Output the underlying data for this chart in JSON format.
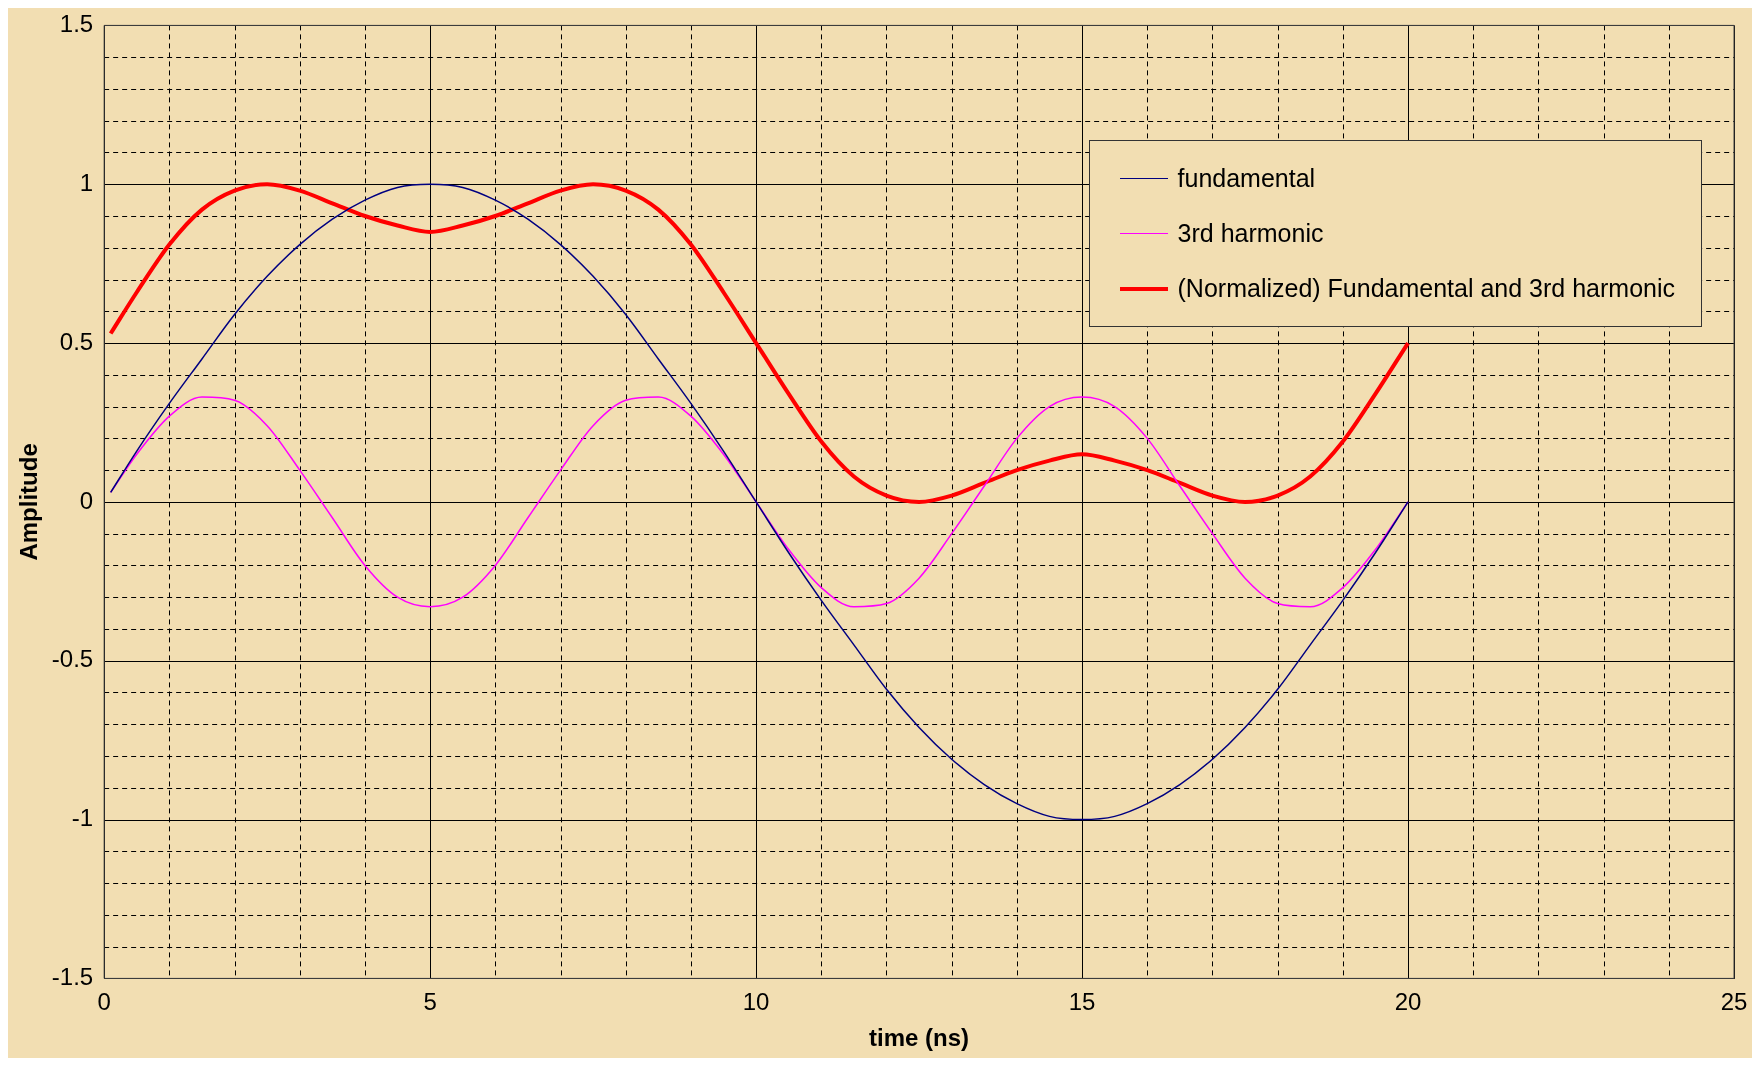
{
  "chart_data": {
    "type": "line",
    "xlabel": "time (ns)",
    "ylabel": "Amplitude",
    "xlim": [
      0,
      25
    ],
    "xticks": [
      0,
      {
        "value": 1,
        "label": null
      },
      {
        "value": 2,
        "label": null
      },
      {
        "value": 3,
        "label": null
      },
      {
        "value": 4,
        "label": null
      },
      5,
      {
        "value": 6,
        "label": null
      },
      {
        "value": 7,
        "label": null
      },
      {
        "value": 8,
        "label": null
      },
      {
        "value": 9,
        "label": null
      },
      10,
      {
        "value": 11,
        "label": null
      },
      {
        "value": 12,
        "label": null
      },
      {
        "value": 13,
        "label": null
      },
      {
        "value": 14,
        "label": null
      },
      15,
      {
        "value": 16,
        "label": null
      },
      {
        "value": 17,
        "label": null
      },
      {
        "value": 18,
        "label": null
      },
      {
        "value": 19,
        "label": null
      },
      20,
      {
        "value": 21,
        "label": null
      },
      {
        "value": 22,
        "label": null
      },
      {
        "value": 23,
        "label": null
      },
      {
        "value": 24,
        "label": null
      },
      25
    ],
    "ylim": [
      -1.5,
      1.5
    ],
    "yticks": [
      -1.5,
      {
        "value": -1.4,
        "label": null
      },
      {
        "value": -1.3,
        "label": null
      },
      {
        "value": -1.2,
        "label": null
      },
      {
        "value": -1.1,
        "label": null
      },
      -1,
      {
        "value": -0.9,
        "label": null
      },
      {
        "value": -0.8,
        "label": null
      },
      {
        "value": -0.7,
        "label": null
      },
      {
        "value": -0.6,
        "label": null
      },
      -0.5,
      {
        "value": -0.4,
        "label": null
      },
      {
        "value": -0.3,
        "label": null
      },
      {
        "value": -0.2,
        "label": null
      },
      {
        "value": -0.1,
        "label": null
      },
      0,
      {
        "value": 0.1,
        "label": null
      },
      {
        "value": 0.2,
        "label": null
      },
      {
        "value": 0.3,
        "label": null
      },
      {
        "value": 0.4,
        "label": null
      },
      0.5,
      {
        "value": 0.6,
        "label": null
      },
      {
        "value": 0.7,
        "label": null
      },
      {
        "value": 0.8,
        "label": null
      },
      {
        "value": 0.9,
        "label": null
      },
      1,
      {
        "value": 1.1,
        "label": null
      },
      {
        "value": 1.2,
        "label": null
      },
      {
        "value": 1.3,
        "label": null
      },
      {
        "value": 1.4,
        "label": null
      },
      1.5
    ],
    "grid": true,
    "legend": "top right",
    "marker": "none",
    "line_style": "solid",
    "x": [
      0.1,
      0.5,
      1,
      1.5,
      2,
      2.5,
      3,
      3.5,
      4,
      4.5,
      5,
      5.5,
      6,
      6.5,
      7,
      7.5,
      8,
      8.5,
      9,
      9.5,
      10,
      10.5,
      11,
      11.5,
      12,
      12.5,
      13,
      13.5,
      14,
      14.5,
      15,
      15.5,
      16,
      16.5,
      17,
      17.5,
      18,
      18.5,
      19,
      19.5,
      20
    ],
    "series": [
      {
        "name": "fundamental",
        "color": "#000080",
        "values": [
          0.03,
          0.16,
          0.31,
          0.45,
          0.59,
          0.71,
          0.81,
          0.89,
          0.95,
          0.99,
          1,
          0.99,
          0.95,
          0.89,
          0.81,
          0.71,
          0.59,
          0.45,
          0.31,
          0.16,
          0,
          -0.16,
          -0.31,
          -0.45,
          -0.59,
          -0.71,
          -0.81,
          -0.89,
          -0.95,
          -0.99,
          -1,
          -0.99,
          -0.95,
          -0.89,
          -0.81,
          -0.71,
          -0.59,
          -0.45,
          -0.31,
          -0.16,
          0
        ]
      },
      {
        "name": "3rd harmonic",
        "color": "#ff00ff",
        "values": [
          0.03,
          0.15,
          0.27,
          0.33,
          0.32,
          0.24,
          0.1,
          -0.05,
          -0.2,
          -0.3,
          -0.33,
          -0.3,
          -0.2,
          -0.05,
          0.1,
          0.24,
          0.32,
          0.33,
          0.27,
          0.15,
          0,
          -0.15,
          -0.27,
          -0.33,
          -0.32,
          -0.24,
          -0.1,
          0.05,
          0.2,
          0.3,
          0.33,
          0.3,
          0.2,
          0.05,
          -0.1,
          -0.24,
          -0.32,
          -0.33,
          -0.27,
          -0.15,
          0
        ]
      },
      {
        "name": "(Normalized) Fundamental and 3rd harmonic",
        "color": "#ff0000",
        "values": [
          0.53,
          0.66,
          0.81,
          0.92,
          0.98,
          1,
          0.98,
          0.94,
          0.9,
          0.87,
          0.85,
          0.87,
          0.9,
          0.94,
          0.98,
          1,
          0.98,
          0.92,
          0.81,
          0.66,
          0.5,
          0.34,
          0.19,
          0.08,
          0.02,
          0,
          0.02,
          0.06,
          0.1,
          0.13,
          0.15,
          0.13,
          0.1,
          0.06,
          0.02,
          0,
          0.02,
          0.08,
          0.19,
          0.34,
          0.5
        ]
      }
    ]
  }
}
